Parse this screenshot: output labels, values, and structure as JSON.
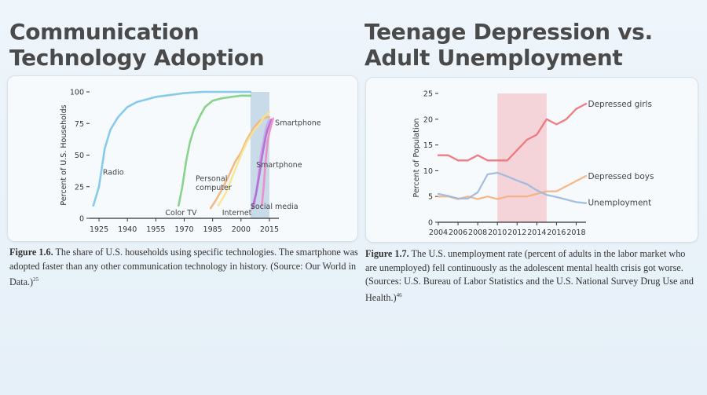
{
  "left_panel": {
    "title": "Communication Technology Adoption",
    "caption": {
      "label": "Figure 1.6.",
      "text": " The share of U.S. households using specific technologies. The smartphone was adopted faster than any other communication technology in history. (Source: Our World in Data.)",
      "ref": "25"
    }
  },
  "right_panel": {
    "title": "Teenage Depression vs. Adult Unemployment",
    "caption": {
      "label": "Figure 1.7.",
      "text": " The U.S. unemployment rate (percent of adults in the labor market who are unemployed) fell continuously as the adolescent mental health crisis got worse. (Sources: U.S. Bureau of Labor Statistics and the U.S. National Survey Drug Use and Health.)",
      "ref": "46"
    }
  },
  "chart_data": [
    {
      "type": "line",
      "title": "",
      "ylabel": "Percent of U.S. Households",
      "xlabel": "",
      "xlim": [
        1920,
        2020
      ],
      "ylim": [
        0,
        100
      ],
      "x_ticks": [
        1925,
        1940,
        1955,
        1970,
        1985,
        2000,
        2015
      ],
      "y_ticks": [
        0,
        25,
        50,
        75,
        100
      ],
      "highlight": {
        "from": 2005,
        "to": 2015,
        "color": "#b9cfe2"
      },
      "grid": false,
      "series": [
        {
          "name": "Radio",
          "color": "#7cc4ea",
          "points": [
            [
              1922,
              10
            ],
            [
              1925,
              25
            ],
            [
              1928,
              55
            ],
            [
              1931,
              70
            ],
            [
              1935,
              80
            ],
            [
              1940,
              88
            ],
            [
              1945,
              92
            ],
            [
              1950,
              94
            ],
            [
              1955,
              96
            ],
            [
              1960,
              97
            ],
            [
              1965,
              98
            ],
            [
              1970,
              99
            ],
            [
              1980,
              100
            ],
            [
              2000,
              100
            ],
            [
              2005,
              100
            ]
          ]
        },
        {
          "name": "Color TV",
          "color": "#7dcf7e",
          "points": [
            [
              1967,
              10
            ],
            [
              1969,
              25
            ],
            [
              1971,
              45
            ],
            [
              1973,
              60
            ],
            [
              1975,
              70
            ],
            [
              1978,
              80
            ],
            [
              1981,
              88
            ],
            [
              1985,
              93
            ],
            [
              1990,
              95
            ],
            [
              1995,
              96
            ],
            [
              2000,
              97
            ],
            [
              2005,
              97
            ]
          ]
        },
        {
          "name": "Personal computer",
          "color": "#f2b27a",
          "points": [
            [
              1984,
              8
            ],
            [
              1987,
              15
            ],
            [
              1990,
              23
            ],
            [
              1993,
              32
            ],
            [
              1997,
              45
            ],
            [
              2000,
              52
            ],
            [
              2003,
              62
            ],
            [
              2007,
              72
            ],
            [
              2010,
              77
            ],
            [
              2013,
              80
            ],
            [
              2015,
              80
            ]
          ]
        },
        {
          "name": "Internet",
          "color": "#f7e48c",
          "points": [
            [
              1988,
              10
            ],
            [
              1992,
              20
            ],
            [
              1996,
              35
            ],
            [
              2000,
              50
            ],
            [
              2003,
              60
            ],
            [
              2007,
              70
            ],
            [
              2010,
              75
            ],
            [
              2012,
              80
            ],
            [
              2015,
              84
            ]
          ]
        },
        {
          "name": "Smartphone",
          "color": "#c9a9e8",
          "points": [
            [
              2007,
              10
            ],
            [
              2008,
              20
            ],
            [
              2009,
              32
            ],
            [
              2010,
              45
            ],
            [
              2011,
              55
            ],
            [
              2012,
              62
            ],
            [
              2013,
              70
            ],
            [
              2014,
              75
            ],
            [
              2015,
              78
            ]
          ]
        },
        {
          "name": "Smartphone",
          "color": "#b268d4",
          "points": [
            [
              2006,
              8
            ],
            [
              2008,
              20
            ],
            [
              2010,
              37
            ],
            [
              2011,
              48
            ],
            [
              2012,
              56
            ],
            [
              2013,
              64
            ],
            [
              2014,
              70
            ],
            [
              2015,
              74
            ],
            [
              2016,
              78
            ]
          ]
        },
        {
          "name": "Social media",
          "color": "#ee88c6",
          "points": [
            [
              2011,
              10
            ],
            [
              2012,
              25
            ],
            [
              2013,
              45
            ],
            [
              2014,
              60
            ],
            [
              2015,
              68
            ],
            [
              2016,
              74
            ],
            [
              2017,
              79
            ]
          ]
        }
      ],
      "labels": [
        {
          "text": "Radio",
          "x": 1927,
          "y": 37
        },
        {
          "text": "Color TV",
          "x": 1960,
          "y": 5
        },
        {
          "text": "Personal",
          "x": 1976,
          "y": 32
        },
        {
          "text": "computer",
          "x": 1976,
          "y": 25
        },
        {
          "text": "Internet",
          "x": 1990,
          "y": 5
        },
        {
          "text": "Smartphone",
          "x": 2008,
          "y": 43
        },
        {
          "text": "Social media",
          "x": 2005,
          "y": 10
        },
        {
          "text": "Smartphone",
          "x": 2018,
          "y": 76
        }
      ]
    },
    {
      "type": "line",
      "title": "",
      "ylabel": "Percent of Population",
      "xlabel": "",
      "xlim": [
        2004,
        2019
      ],
      "ylim": [
        0,
        25
      ],
      "x_ticks": [
        2004,
        2006,
        2008,
        2010,
        2012,
        2014,
        2016,
        2018
      ],
      "y_ticks": [
        0,
        5,
        10,
        15,
        20,
        25
      ],
      "highlight": {
        "from": 2010,
        "to": 2015,
        "color": "#f4c7cc"
      },
      "grid": false,
      "series": [
        {
          "name": "Depressed girls",
          "color": "#ee6f73",
          "points": [
            [
              2004,
              13
            ],
            [
              2005,
              13
            ],
            [
              2006,
              12
            ],
            [
              2007,
              12
            ],
            [
              2008,
              13
            ],
            [
              2009,
              12
            ],
            [
              2010,
              12
            ],
            [
              2011,
              12
            ],
            [
              2012,
              14
            ],
            [
              2013,
              16
            ],
            [
              2014,
              17
            ],
            [
              2015,
              20
            ],
            [
              2016,
              19
            ],
            [
              2017,
              20
            ],
            [
              2018,
              22
            ],
            [
              2019,
              23
            ]
          ]
        },
        {
          "name": "Depressed boys",
          "color": "#f4b07e",
          "points": [
            [
              2004,
              5
            ],
            [
              2005,
              5
            ],
            [
              2006,
              4.5
            ],
            [
              2007,
              5
            ],
            [
              2008,
              4.5
            ],
            [
              2009,
              5
            ],
            [
              2010,
              4.5
            ],
            [
              2011,
              5
            ],
            [
              2012,
              5
            ],
            [
              2013,
              5
            ],
            [
              2014,
              5.5
            ],
            [
              2015,
              6
            ],
            [
              2016,
              6
            ],
            [
              2017,
              7
            ],
            [
              2018,
              8
            ],
            [
              2019,
              9
            ]
          ]
        },
        {
          "name": "Unemployment",
          "color": "#9cb8dc",
          "points": [
            [
              2004,
              5.5
            ],
            [
              2005,
              5.1
            ],
            [
              2006,
              4.6
            ],
            [
              2007,
              4.6
            ],
            [
              2008,
              5.8
            ],
            [
              2009,
              9.3
            ],
            [
              2010,
              9.6
            ],
            [
              2011,
              8.9
            ],
            [
              2012,
              8.1
            ],
            [
              2013,
              7.4
            ],
            [
              2014,
              6.2
            ],
            [
              2015,
              5.3
            ],
            [
              2016,
              4.9
            ],
            [
              2017,
              4.4
            ],
            [
              2018,
              3.9
            ],
            [
              2019,
              3.7
            ]
          ]
        }
      ],
      "labels": [
        {
          "text": "Depressed girls",
          "x": 2019.2,
          "y": 23
        },
        {
          "text": "Depressed boys",
          "x": 2019.2,
          "y": 9
        },
        {
          "text": "Unemployment",
          "x": 2019.2,
          "y": 3.9
        }
      ]
    }
  ]
}
